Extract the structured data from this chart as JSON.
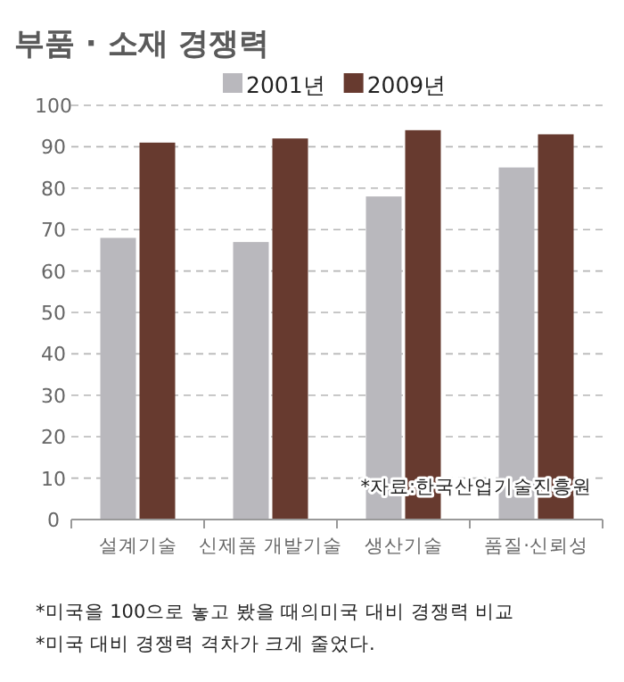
{
  "chart_data": {
    "type": "bar",
    "title": "부품 · 소재 경쟁력",
    "categories": [
      "설계기술",
      "신제품 개발기술",
      "생산기술",
      "품질·신뢰성"
    ],
    "series": [
      {
        "name": "2001년",
        "color": "#b9b8bd",
        "values": [
          68,
          67,
          78,
          85
        ]
      },
      {
        "name": "2009년",
        "color": "#673a2f",
        "values": [
          91,
          92,
          94,
          93
        ]
      }
    ],
    "ylim": [
      0,
      100
    ],
    "yticks": [
      0,
      10,
      20,
      30,
      40,
      50,
      60,
      70,
      80,
      90,
      100
    ],
    "grid": "y",
    "legend": "top",
    "annotations": [
      "*자료:한국산업기술진흥원",
      "*미국을 100으로 놓고 봤을 때의미국 대비 경쟁력 비교",
      "*미국 대비 경쟁력 격차가 크게 줄었다."
    ]
  }
}
